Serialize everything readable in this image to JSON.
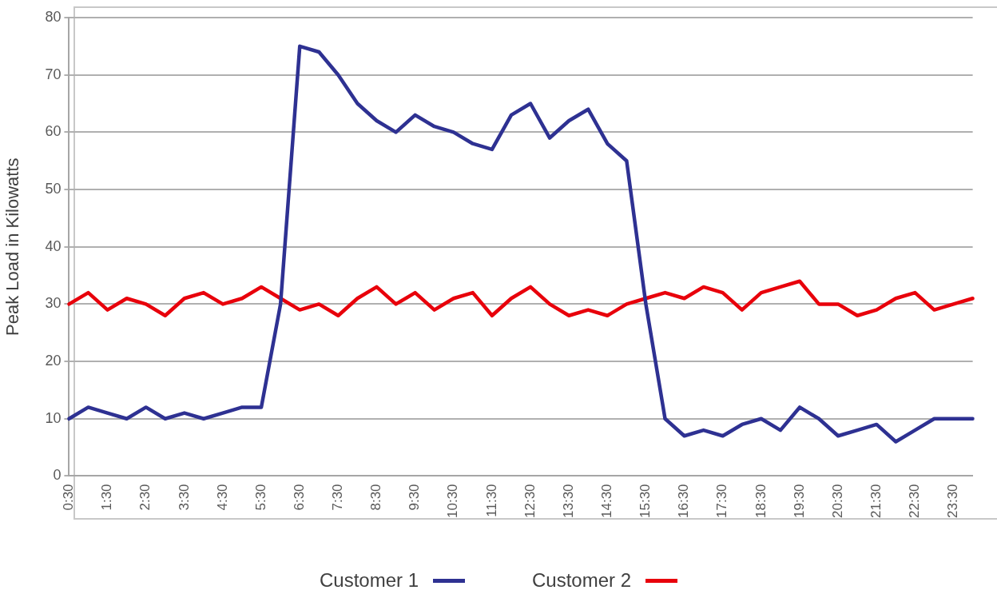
{
  "chart_data": {
    "type": "line",
    "ylabel": "Peak Load in Kilowatts",
    "categories": [
      "0:30",
      null,
      "1:30",
      null,
      "2:30",
      null,
      "3:30",
      null,
      "4:30",
      null,
      "5:30",
      null,
      "6:30",
      null,
      "7:30",
      null,
      "8:30",
      null,
      "9:30",
      null,
      "10:30",
      null,
      "11:30",
      null,
      "12:30",
      null,
      "13:30",
      null,
      "14:30",
      null,
      "15:30",
      null,
      "16:30",
      null,
      "17:30",
      null,
      "18:30",
      null,
      "19:30",
      null,
      "20:30",
      null,
      "21:30",
      null,
      "22:30",
      null,
      "23:30",
      null
    ],
    "series": [
      {
        "name": "Customer 1",
        "color": "#2e3192",
        "values": [
          10,
          12,
          11,
          10,
          12,
          10,
          11,
          10,
          11,
          12,
          12,
          30,
          75,
          74,
          70,
          65,
          62,
          60,
          63,
          61,
          60,
          58,
          57,
          63,
          65,
          59,
          62,
          64,
          58,
          55,
          30,
          10,
          7,
          8,
          7,
          9,
          10,
          8,
          12,
          10,
          7,
          8,
          9,
          6,
          8,
          10,
          10,
          10
        ]
      },
      {
        "name": "Customer 2",
        "color": "#e8000b",
        "values": [
          30,
          32,
          29,
          31,
          30,
          28,
          31,
          32,
          30,
          31,
          33,
          31,
          29,
          30,
          28,
          31,
          33,
          30,
          32,
          29,
          31,
          32,
          28,
          31,
          33,
          30,
          28,
          29,
          28,
          30,
          31,
          32,
          31,
          33,
          32,
          29,
          32,
          33,
          34,
          30,
          30,
          28,
          29,
          31,
          32,
          29,
          30,
          31
        ]
      }
    ],
    "ylim": [
      0,
      80
    ],
    "yticks": [
      0,
      10,
      20,
      30,
      40,
      50,
      60,
      70,
      80
    ],
    "grid": "y",
    "legend": "bottom",
    "marker": "none",
    "line_style": "solid"
  }
}
